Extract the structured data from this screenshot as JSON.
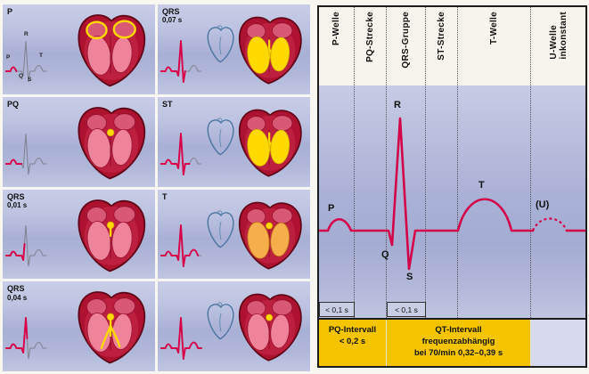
{
  "left_panels": [
    {
      "label": "P",
      "sub": "",
      "trace": "p",
      "variant": "atria",
      "sketch": false,
      "show_ecg_letters": true
    },
    {
      "label": "QRS",
      "sub": "0,07 s",
      "trace": "qrs3",
      "variant": "ventricles",
      "sketch": true,
      "show_ecg_letters": false
    },
    {
      "label": "PQ",
      "sub": "",
      "trace": "pq",
      "variant": "av-node",
      "sketch": false,
      "show_ecg_letters": false
    },
    {
      "label": "ST",
      "sub": "",
      "trace": "st",
      "variant": "ventricles",
      "sketch": true,
      "show_ecg_letters": false
    },
    {
      "label": "QRS",
      "sub": "0,01 s",
      "trace": "qrs1",
      "variant": "bundle-start",
      "sketch": false,
      "show_ecg_letters": false
    },
    {
      "label": "T",
      "sub": "",
      "trace": "t",
      "variant": "ventricles-fading",
      "sketch": true,
      "show_ecg_letters": false
    },
    {
      "label": "QRS",
      "sub": "0,04 s",
      "trace": "qrs2",
      "variant": "bundle",
      "sketch": false,
      "show_ecg_letters": false
    },
    {
      "label": "",
      "sub": "",
      "trace": "full",
      "variant": "av-node",
      "sketch": true,
      "show_ecg_letters": false
    }
  ],
  "mini_ecg_letters": {
    "r": "R",
    "p": "P",
    "q": "Q",
    "s": "S",
    "t": "T"
  },
  "right_chart": {
    "columns": [
      {
        "lines": [
          "P-Welle"
        ]
      },
      {
        "lines": [
          "PQ-Strecke"
        ]
      },
      {
        "lines": [
          "QRS-Gruppe"
        ]
      },
      {
        "lines": [
          "ST-Strecke"
        ]
      },
      {
        "lines": [
          "T-Welle"
        ]
      },
      {
        "lines": [
          "U-Welle",
          "inkonstant"
        ]
      }
    ],
    "wave_labels": {
      "r": "R",
      "p": "P",
      "q": "Q",
      "s": "S",
      "t": "T",
      "u": "(U)"
    },
    "durations": {
      "p": "< 0,1 s",
      "qrs": "< 0,1 s"
    },
    "intervals": {
      "pq_line1": "PQ-Intervall",
      "pq_line2": "< 0,2 s",
      "qt_line1": "QT-Intervall",
      "qt_line2": "frequenzabhängig",
      "qt_line3": "bei 70/min  0,32–0,39 s"
    },
    "colors": {
      "trace": "#d4044a",
      "interval_bg": "#f4c400",
      "band_light": "#c7cbe5",
      "band_dark": "#a4acd2",
      "highlight_yellow": "#ffd900",
      "heart_red": "#ad1230"
    }
  }
}
